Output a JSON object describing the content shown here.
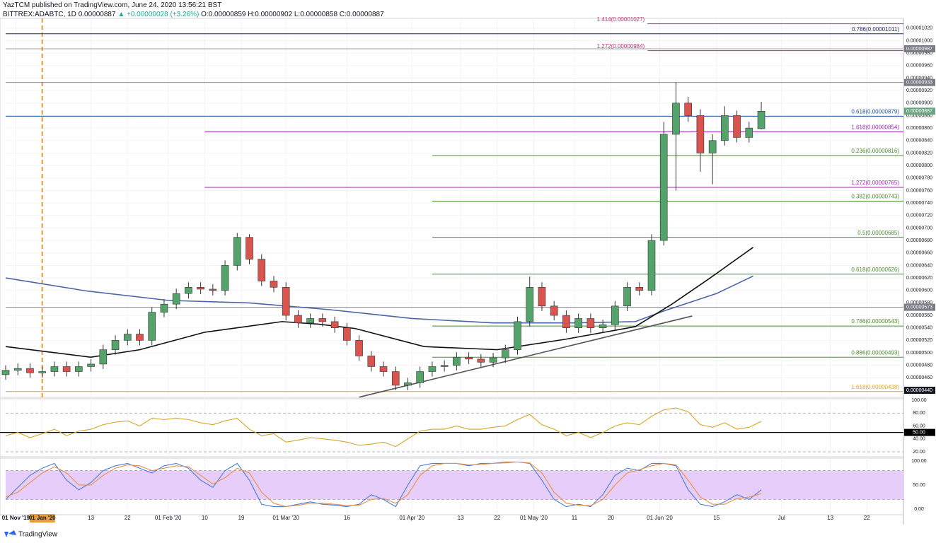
{
  "header": {
    "author": "YazTCM published on TradingView.com, June 24, 2020 13:56:21 BST",
    "symbol": "BITTREX:ADABTC, 1D",
    "last": "0.00000887",
    "change": "▲ +0.00000028 (+3.26%)",
    "ohlc": "O:0.00000859 H:0.00000902 L:0.00000858 C:0.00000887"
  },
  "footer": "TradingView",
  "chart_data": [
    {
      "type": "candlestick",
      "up_color": "#53a36b",
      "down_color": "#d9534f",
      "grid": true,
      "x": [
        0,
        3,
        6,
        9,
        12,
        15,
        18,
        21,
        24,
        27,
        30,
        33,
        36,
        39,
        42,
        45,
        48,
        51,
        54,
        57,
        60,
        63,
        66,
        69,
        72,
        75,
        78,
        81,
        84,
        87,
        90,
        93,
        96,
        99,
        102,
        105,
        108,
        111,
        114,
        117,
        120,
        123,
        126,
        129,
        132,
        135,
        138,
        141,
        144,
        147,
        150,
        153,
        156,
        159,
        162,
        165,
        168,
        171,
        174,
        177,
        180,
        183,
        186
      ],
      "open": [
        4.65e-06,
        4.72e-06,
        4.75e-06,
        4.68e-06,
        4.7e-06,
        4.78e-06,
        4.7e-06,
        4.78e-06,
        4.82e-06,
        5.05e-06,
        5.2e-06,
        5.3e-06,
        5.2e-06,
        5.65e-06,
        5.78e-06,
        5.95e-06,
        6.05e-06,
        6.02e-06,
        6e-06,
        6.4e-06,
        6.85e-06,
        6.5e-06,
        6.15e-06,
        6.05e-06,
        5.6e-06,
        5.48e-06,
        5.55e-06,
        5.5e-06,
        5.4e-06,
        5.2e-06,
        4.95e-06,
        4.78e-06,
        4.7e-06,
        4.48e-06,
        4.52e-06,
        4.7e-06,
        4.78e-06,
        4.8e-06,
        4.93e-06,
        4.9e-06,
        4.85e-06,
        4.92e-06,
        5.05e-06,
        5.5e-06,
        6.05e-06,
        5.75e-06,
        5.6e-06,
        5.4e-06,
        5.55e-06,
        5.4e-06,
        5.45e-06,
        5.75e-06,
        6.05e-06,
        6e-06,
        6.8e-06,
        8.5e-06,
        9e-06,
        8.8e-06,
        8.2e-06,
        8.4e-06,
        8.8e-06,
        8.45e-06,
        8.59e-06
      ],
      "high": [
        4.8e-06,
        4.83e-06,
        4.83e-06,
        4.78e-06,
        4.86e-06,
        4.86e-06,
        4.86e-06,
        4.9e-06,
        5.13e-06,
        5.28e-06,
        5.38e-06,
        5.38e-06,
        5.73e-06,
        5.86e-06,
        6.03e-06,
        6.13e-06,
        6.13e-06,
        6.1e-06,
        6.48e-06,
        6.92e-06,
        6.9e-06,
        6.58e-06,
        6.23e-06,
        6.13e-06,
        5.68e-06,
        5.63e-06,
        5.63e-06,
        5.58e-06,
        5.48e-06,
        5.28e-06,
        5.03e-06,
        4.86e-06,
        4.78e-06,
        4.6e-06,
        4.78e-06,
        4.86e-06,
        4.88e-06,
        5.01e-06,
        5.01e-06,
        4.98e-06,
        5e-06,
        5.13e-06,
        5.58e-06,
        6.22e-06,
        6.13e-06,
        5.83e-06,
        5.68e-06,
        5.63e-06,
        5.63e-06,
        5.53e-06,
        5.83e-06,
        6.13e-06,
        6.13e-06,
        6.9e-06,
        8.7e-06,
        9.33e-06,
        9.1e-06,
        8.9e-06,
        8.5e-06,
        8.95e-06,
        8.88e-06,
        8.7e-06,
        9.02e-06
      ],
      "low": [
        4.57e-06,
        4.64e-06,
        4.6e-06,
        4.6e-06,
        4.62e-06,
        4.62e-06,
        4.62e-06,
        4.7e-06,
        4.74e-06,
        4.97e-06,
        5.12e-06,
        5.12e-06,
        5.12e-06,
        5.57e-06,
        5.7e-06,
        5.87e-06,
        5.94e-06,
        5.92e-06,
        5.92e-06,
        6.32e-06,
        6.42e-06,
        6.07e-06,
        5.97e-06,
        5.52e-06,
        5.4e-06,
        5.4e-06,
        5.42e-06,
        5.32e-06,
        5.12e-06,
        4.87e-06,
        4.7e-06,
        4.62e-06,
        4.4e-06,
        4.4e-06,
        4.44e-06,
        4.62e-06,
        4.7e-06,
        4.72e-06,
        4.82e-06,
        4.77e-06,
        4.77e-06,
        4.84e-06,
        4.97e-06,
        5.42e-06,
        5.67e-06,
        5.52e-06,
        5.32e-06,
        5.32e-06,
        5.32e-06,
        5.32e-06,
        5.37e-06,
        5.67e-06,
        5.92e-06,
        5.92e-06,
        6.72e-06,
        7.6e-06,
        8.7e-06,
        7.9e-06,
        7.7e-06,
        8.32e-06,
        8.37e-06,
        8.37e-06,
        8.58e-06
      ],
      "close": [
        4.72e-06,
        4.75e-06,
        4.68e-06,
        4.7e-06,
        4.78e-06,
        4.7e-06,
        4.78e-06,
        4.82e-06,
        5.05e-06,
        5.2e-06,
        5.3e-06,
        5.2e-06,
        5.65e-06,
        5.78e-06,
        5.95e-06,
        6.05e-06,
        6.02e-06,
        6e-06,
        6.4e-06,
        6.85e-06,
        6.5e-06,
        6.15e-06,
        6.05e-06,
        5.6e-06,
        5.48e-06,
        5.55e-06,
        5.5e-06,
        5.4e-06,
        5.2e-06,
        4.95e-06,
        4.78e-06,
        4.7e-06,
        4.48e-06,
        4.52e-06,
        4.7e-06,
        4.78e-06,
        4.8e-06,
        4.93e-06,
        4.9e-06,
        4.85e-06,
        4.92e-06,
        5.05e-06,
        5.5e-06,
        6.05e-06,
        5.75e-06,
        5.6e-06,
        5.4e-06,
        5.55e-06,
        5.4e-06,
        5.45e-06,
        5.75e-06,
        6.05e-06,
        6e-06,
        6.8e-06,
        8.5e-06,
        9e-06,
        8.8e-06,
        8.2e-06,
        8.4e-06,
        8.8e-06,
        8.45e-06,
        8.6e-06,
        8.87e-06
      ],
      "xlim": [
        0,
        221
      ],
      "xticks": [
        {
          "value": 2.5,
          "label": "01 Nov '19"
        },
        {
          "value": 9,
          "label": "01 Jan '20"
        },
        {
          "value": 21,
          "label": "13"
        },
        {
          "value": 30,
          "label": "22"
        },
        {
          "value": 40,
          "label": "01 Feb '20"
        },
        {
          "value": 49,
          "label": "10"
        },
        {
          "value": 58,
          "label": "19"
        },
        {
          "value": 69,
          "label": "01 Mar '20"
        },
        {
          "value": 84,
          "label": "16"
        },
        {
          "value": 100,
          "label": "01 Apr '20"
        },
        {
          "value": 112,
          "label": "13"
        },
        {
          "value": 121,
          "label": "22"
        },
        {
          "value": 130,
          "label": "01 May '20"
        },
        {
          "value": 140,
          "label": "11"
        },
        {
          "value": 149,
          "label": "20"
        },
        {
          "value": 161,
          "label": "01 Jun '20"
        },
        {
          "value": 175,
          "label": "15"
        },
        {
          "value": 191,
          "label": "Jul"
        },
        {
          "value": 203,
          "label": "13"
        },
        {
          "value": 212,
          "label": "22"
        }
      ],
      "ylim": [
        4.287e-06,
        1.0357e-05
      ],
      "yticks": [
        {
          "value": 4.6e-06,
          "label": "0.00000460"
        },
        {
          "value": 4.8e-06,
          "label": "0.00000480"
        },
        {
          "value": 5e-06,
          "label": "0.00000500"
        },
        {
          "value": 5.2e-06,
          "label": "0.00000520"
        },
        {
          "value": 5.4e-06,
          "label": "0.00000540"
        },
        {
          "value": 5.6e-06,
          "label": "0.00000560"
        },
        {
          "value": 5.8e-06,
          "label": "0.00000580"
        },
        {
          "value": 6e-06,
          "label": "0.00000600"
        },
        {
          "value": 6.2e-06,
          "label": "0.00000620"
        },
        {
          "value": 6.4e-06,
          "label": "0.00000640"
        },
        {
          "value": 6.6e-06,
          "label": "0.00000660"
        },
        {
          "value": 6.8e-06,
          "label": "0.00000680"
        },
        {
          "value": 7e-06,
          "label": "0.00000700"
        },
        {
          "value": 7.2e-06,
          "label": "0.00000720"
        },
        {
          "value": 7.4e-06,
          "label": "0.00000740"
        },
        {
          "value": 7.6e-06,
          "label": "0.00000760"
        },
        {
          "value": 7.8e-06,
          "label": "0.00000780"
        },
        {
          "value": 8e-06,
          "label": "0.00000800"
        },
        {
          "value": 8.2e-06,
          "label": "0.00000820"
        },
        {
          "value": 8.4e-06,
          "label": "0.00000840"
        },
        {
          "value": 8.6e-06,
          "label": "0.00000860"
        },
        {
          "value": 8.8e-06,
          "label": "0.00000880"
        },
        {
          "value": 9e-06,
          "label": "0.00000900"
        },
        {
          "value": 9.2e-06,
          "label": "0.00000920"
        },
        {
          "value": 9.4e-06,
          "label": "0.00000940"
        },
        {
          "value": 9.6e-06,
          "label": "0.00000960"
        },
        {
          "value": 9.8e-06,
          "label": "0.00000980"
        },
        {
          "value": 1e-05,
          "label": "0.00001000"
        },
        {
          "value": 1.02e-05,
          "label": "0.00001020"
        }
      ],
      "lines": [
        {
          "color": "#4a64a8",
          "x": [
            0,
            20,
            40,
            60,
            80,
            100,
            120,
            140,
            155,
            162,
            175,
            184
          ],
          "values": [
            6.2e-06,
            5.99e-06,
            5.84e-06,
            5.8e-06,
            5.69e-06,
            5.55e-06,
            5.48e-06,
            5.48e-06,
            5.5e-06,
            5.67e-06,
            5.95e-06,
            6.23e-06
          ]
        },
        {
          "color": "#111111",
          "x": [
            0,
            21,
            33,
            49,
            68,
            77,
            86,
            103,
            121,
            138,
            155,
            164,
            173,
            184
          ],
          "values": [
            5.1e-06,
            4.93e-06,
            5.05e-06,
            5.33e-06,
            5.5e-06,
            5.46e-06,
            5.39e-06,
            5.1e-06,
            5.05e-06,
            5.22e-06,
            5.42e-06,
            5.78e-06,
            6.18e-06,
            6.69e-06
          ]
        },
        {
          "color": "#555555",
          "x": [
            87,
            169
          ],
          "values": [
            4.29e-06,
            5.59e-06
          ]
        }
      ],
      "levels": [
        {
          "label": "1.414(0.00001027)",
          "value": 1.027e-05,
          "color": "#c0306a",
          "from": 158
        },
        {
          "label": "0.786(0.00001011)",
          "value": 1.011e-05,
          "color": "#1a237e",
          "from": 0
        },
        {
          "label": "1.272(0.00000984)",
          "value": 9.84e-06,
          "color": "#c0306a",
          "from": 158
        },
        {
          "label": "0.618(0.00000879)",
          "value": 8.79e-06,
          "color": "#2950a8",
          "from": 0
        },
        {
          "label": "1.618(0.00000854)",
          "value": 8.54e-06,
          "color": "#9c27b0",
          "from": 49
        },
        {
          "label": "0.236(0.00000816)",
          "value": 8.16e-06,
          "color": "#4e8a2e",
          "from": 105
        },
        {
          "label": "1.272(0.00000765)",
          "value": 7.65e-06,
          "color": "#9c27b0",
          "from": 49
        },
        {
          "label": "0.382(0.00000743)",
          "value": 7.43e-06,
          "color": "#4e8a2e",
          "from": 105
        },
        {
          "label": "0.5(0.00000685)",
          "value": 6.85e-06,
          "color": "#4e8a2e",
          "from": 105
        },
        {
          "label": "0.618(0.00000626)",
          "value": 6.26e-06,
          "color": "#4e8a2e",
          "from": 105
        },
        {
          "label": "0.786(0.00000543)",
          "value": 5.43e-06,
          "color": "#4e8a2e",
          "from": 105
        },
        {
          "label": "0.886(0.00000493)",
          "value": 4.93e-06,
          "color": "#4e8a2e",
          "from": 105
        },
        {
          "label": "1.618(0.00000438)",
          "value": 4.38e-06,
          "color": "#e0a030",
          "from": 0
        }
      ],
      "price_markers": [
        {
          "value": 9.87e-06,
          "label": "0.00000987",
          "color": "#787b86",
          "line": true
        },
        {
          "value": 9.33e-06,
          "label": "0.00000933",
          "color": "#787b86",
          "line": true
        },
        {
          "value": 8.87e-06,
          "label": "0.00000887",
          "color": "#6ba583",
          "line": false
        },
        {
          "value": 5.73e-06,
          "label": "0.00000573",
          "color": "#787b86",
          "line": true
        },
        {
          "value": 4.4e-06,
          "label": "0.00000440",
          "color": "#131722",
          "line": false
        }
      ],
      "vlines": [
        {
          "x": 9,
          "color": "#e39d3a"
        }
      ]
    },
    {
      "type": "line",
      "x": [
        0,
        3,
        6,
        9,
        12,
        15,
        18,
        21,
        24,
        27,
        30,
        33,
        36,
        39,
        42,
        45,
        48,
        51,
        54,
        57,
        60,
        63,
        66,
        69,
        72,
        75,
        78,
        81,
        84,
        87,
        90,
        93,
        96,
        99,
        102,
        105,
        108,
        111,
        114,
        117,
        120,
        123,
        126,
        129,
        132,
        135,
        138,
        141,
        144,
        147,
        150,
        153,
        156,
        159,
        162,
        165,
        168,
        171,
        174,
        177,
        180,
        183,
        186
      ],
      "series": [
        {
          "color": "#d4a62a",
          "values": [
            45,
            50,
            42,
            48,
            55,
            45,
            52,
            55,
            62,
            66,
            68,
            60,
            72,
            70,
            72,
            70,
            65,
            62,
            68,
            72,
            55,
            45,
            48,
            35,
            38,
            42,
            40,
            38,
            35,
            30,
            32,
            35,
            28,
            40,
            52,
            55,
            55,
            60,
            55,
            55,
            58,
            60,
            70,
            78,
            62,
            55,
            45,
            50,
            42,
            50,
            60,
            65,
            62,
            75,
            85,
            88,
            82,
            62,
            58,
            65,
            55,
            58,
            67
          ]
        }
      ],
      "ylim": [
        12.3,
        102.2
      ],
      "yticks": [
        {
          "value": 100,
          "label": "100.00"
        },
        {
          "value": 80,
          "label": "80.00"
        },
        {
          "value": 60,
          "label": "60.00"
        },
        {
          "value": 50,
          "label": "50.00"
        },
        {
          "value": 40,
          "label": "40.00"
        },
        {
          "value": 20,
          "label": "20.00"
        }
      ],
      "band": [
        20,
        80
      ],
      "midline": 50
    },
    {
      "type": "line",
      "x": [
        0,
        3,
        6,
        9,
        12,
        15,
        18,
        21,
        24,
        27,
        30,
        33,
        36,
        39,
        42,
        45,
        48,
        51,
        54,
        57,
        60,
        63,
        66,
        69,
        72,
        75,
        78,
        81,
        84,
        87,
        90,
        93,
        96,
        99,
        102,
        105,
        108,
        111,
        114,
        117,
        120,
        123,
        126,
        129,
        132,
        135,
        138,
        141,
        144,
        147,
        150,
        153,
        156,
        159,
        162,
        165,
        168,
        171,
        174,
        177,
        180,
        183,
        186
      ],
      "series": [
        {
          "color": "#4a7dd6",
          "values": [
            20,
            45,
            70,
            85,
            95,
            60,
            40,
            55,
            80,
            90,
            95,
            85,
            75,
            90,
            95,
            85,
            60,
            45,
            80,
            95,
            60,
            10,
            5,
            5,
            10,
            15,
            10,
            8,
            5,
            10,
            30,
            20,
            5,
            50,
            90,
            95,
            95,
            95,
            90,
            95,
            95,
            98,
            98,
            95,
            60,
            20,
            5,
            10,
            5,
            30,
            70,
            85,
            80,
            95,
            95,
            90,
            40,
            10,
            5,
            15,
            30,
            20,
            40
          ]
        },
        {
          "color": "#e8904a",
          "values": [
            25,
            35,
            55,
            75,
            88,
            75,
            50,
            50,
            70,
            85,
            92,
            90,
            80,
            85,
            90,
            88,
            70,
            52,
            65,
            85,
            75,
            35,
            12,
            5,
            8,
            12,
            12,
            10,
            7,
            8,
            20,
            22,
            12,
            30,
            70,
            90,
            95,
            95,
            92,
            93,
            95,
            96,
            98,
            96,
            75,
            35,
            12,
            8,
            7,
            20,
            50,
            75,
            82,
            90,
            95,
            92,
            60,
            25,
            10,
            10,
            22,
            25,
            32
          ]
        }
      ],
      "ylim": [
        -11.8,
        105.9
      ],
      "yticks": [
        {
          "value": 100,
          "label": "100.00"
        },
        {
          "value": 50,
          "label": "50.00"
        },
        {
          "value": 0,
          "label": "0.00"
        }
      ],
      "band": [
        20,
        80
      ],
      "band_fill": "#e6cdfa"
    }
  ]
}
